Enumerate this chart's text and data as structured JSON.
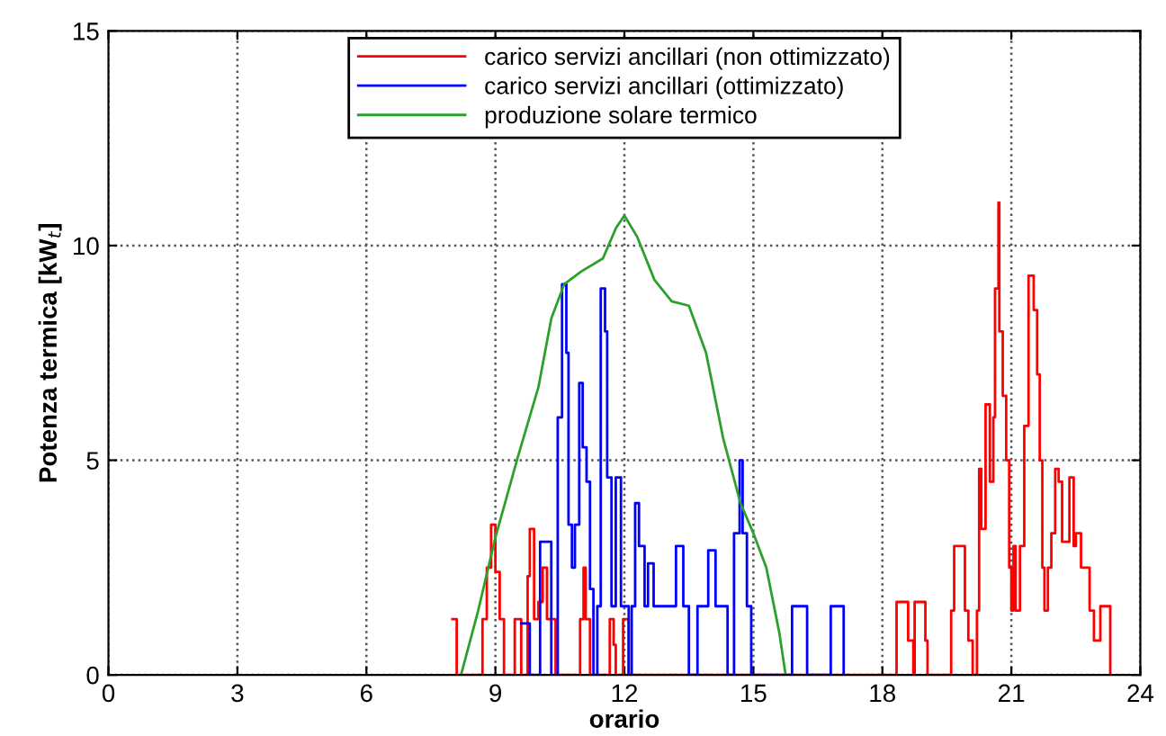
{
  "chart_data": {
    "type": "step",
    "xlabel": "orario",
    "ylabel": "Potenza termica [kW$_{t}$]",
    "xlim": [
      0,
      24
    ],
    "xticks": [
      0,
      3,
      6,
      9,
      12,
      15,
      18,
      21,
      24
    ],
    "ylim": [
      0,
      15
    ],
    "yticks": [
      0,
      5,
      10,
      15
    ],
    "grid": true,
    "legend": "top",
    "line_style": "solid",
    "series": [
      {
        "name": "carico servizi ancillari (non ottimizzato)",
        "color": "#ff0000",
        "x": [
          8.0,
          8.1,
          8.7,
          8.8,
          8.9,
          9.0,
          9.1,
          9.2,
          9.45,
          9.6,
          9.75,
          9.8,
          9.9,
          10.0,
          10.1,
          10.2,
          10.4,
          10.97,
          11.05,
          11.1,
          11.2,
          11.66,
          11.75,
          11.8,
          11.97,
          12.1,
          18.33,
          18.6,
          18.72,
          18.75,
          19.0,
          19.05,
          19.6,
          19.67,
          19.92,
          20.0,
          20.1,
          20.2,
          20.25,
          20.3,
          20.4,
          20.5,
          20.58,
          20.62,
          20.7,
          20.72,
          20.8,
          20.88,
          20.95,
          21.0,
          21.05,
          21.1,
          21.2,
          21.3,
          21.4,
          21.52,
          21.6,
          21.66,
          21.72,
          21.77,
          21.85,
          21.93,
          22.02,
          22.1,
          22.18,
          22.35,
          22.45,
          22.5,
          22.62,
          22.82,
          22.92,
          23.07,
          23.3
        ],
        "values": [
          1.3,
          0,
          1.3,
          2.5,
          3.5,
          2.4,
          1.3,
          0,
          1.3,
          0,
          2.3,
          3.4,
          1.3,
          1.7,
          2.5,
          1.3,
          0,
          1.3,
          2.5,
          1.3,
          0,
          1.3,
          0.7,
          0,
          1.3,
          0,
          1.7,
          0.8,
          0,
          1.7,
          0.8,
          0,
          1.5,
          3.0,
          1.5,
          0.8,
          0,
          1.5,
          4.8,
          3.4,
          6.3,
          4.5,
          6.0,
          9.0,
          11.0,
          8.0,
          6.5,
          5.0,
          2.5,
          1.5,
          3.0,
          1.5,
          3.0,
          5.8,
          9.3,
          8.5,
          7.0,
          5.0,
          2.5,
          1.5,
          2.5,
          3.3,
          4.8,
          4.5,
          3.1,
          4.6,
          3.0,
          3.3,
          2.5,
          1.5,
          0.8,
          1.6,
          0
        ]
      },
      {
        "name": "carico servizi ancillari (ottimizzato)",
        "color": "#0000ff",
        "x": [
          9.6,
          9.8,
          10.04,
          10.3,
          10.45,
          10.55,
          10.65,
          10.7,
          10.78,
          10.85,
          10.95,
          11.03,
          11.12,
          11.2,
          11.28,
          11.37,
          11.45,
          11.55,
          11.6,
          11.7,
          11.8,
          11.92,
          12.1,
          12.17,
          12.25,
          12.34,
          12.47,
          12.55,
          12.68,
          12.77,
          13.2,
          13.37,
          13.5,
          13.7,
          13.95,
          14.12,
          14.4,
          14.55,
          14.68,
          14.75,
          14.85,
          14.95,
          15.9,
          16.25,
          16.8,
          17.1
        ],
        "values": [
          1.2,
          0,
          3.1,
          0,
          6.0,
          9.1,
          7.5,
          3.5,
          2.5,
          3.5,
          6.8,
          5.3,
          4.5,
          2.0,
          0,
          1.6,
          9.0,
          8.0,
          4.6,
          1.6,
          4.6,
          1.6,
          0,
          1.6,
          4.0,
          3.0,
          1.6,
          2.6,
          1.6,
          1.6,
          3.0,
          1.6,
          0,
          1.6,
          2.9,
          1.6,
          0,
          3.3,
          5.0,
          3.3,
          1.6,
          0,
          1.6,
          0,
          1.6,
          0
        ]
      },
      {
        "name": "produzione solare termico",
        "color": "#2ca02c",
        "type": "line",
        "x": [
          8.2,
          8.6,
          9.0,
          9.5,
          10.0,
          10.3,
          10.6,
          11.0,
          11.5,
          11.8,
          12.0,
          12.3,
          12.7,
          13.1,
          13.5,
          13.9,
          14.3,
          14.7,
          15.0,
          15.3,
          15.6,
          15.75
        ],
        "values": [
          0,
          1.5,
          3.2,
          5.0,
          6.7,
          8.3,
          9.1,
          9.4,
          9.7,
          10.4,
          10.7,
          10.2,
          9.2,
          8.7,
          8.6,
          7.5,
          5.5,
          4.0,
          3.3,
          2.5,
          1.0,
          0
        ]
      }
    ]
  }
}
